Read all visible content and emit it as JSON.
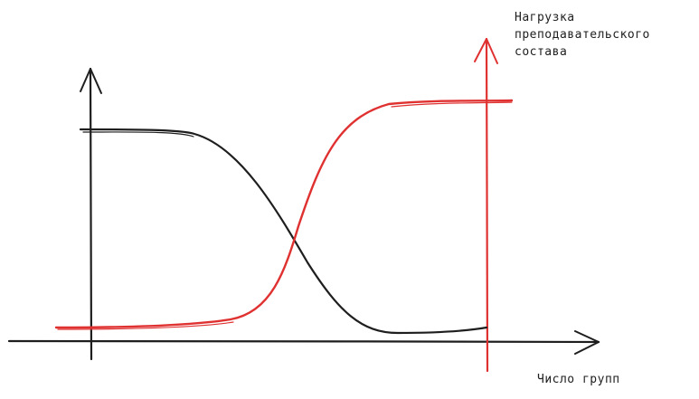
{
  "colors": {
    "ink": "#1e1e1e",
    "accent": "#e03131"
  },
  "labels": {
    "y_axis_lines": [
      "Нагрузка",
      "преподавательского",
      "состава"
    ],
    "x_axis": "Число групп"
  }
}
